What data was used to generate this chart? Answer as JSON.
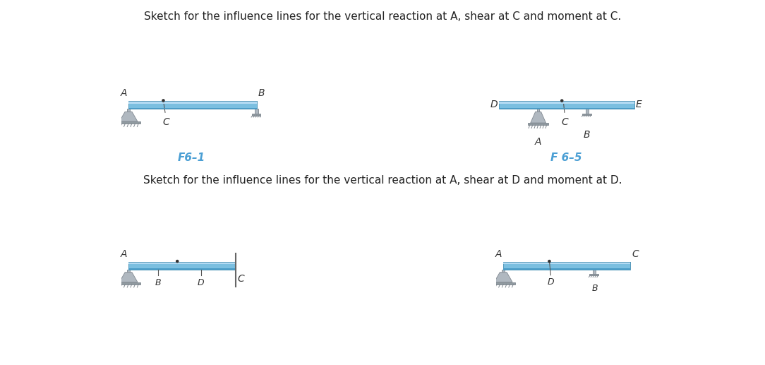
{
  "title1": "Sketch for the influence lines for the vertical reaction at A, shear at C and moment at C.",
  "title2": "Sketch for the influence lines for the vertical reaction at A, shear at D and moment at D.",
  "label_color_blue": "#4b9fd4",
  "beam_top_color": "#b8ddf5",
  "beam_mid_color": "#7bbfe0",
  "beam_bot_color": "#4a9cc8",
  "beam_edge_color": "#5599bb",
  "support_body_color": "#b0b8c0",
  "support_edge_color": "#808890",
  "support_base_color": "#909aa0",
  "bg_color": "#ffffff",
  "fig_code1": "F6–1",
  "fig_code2": "F 6–5"
}
